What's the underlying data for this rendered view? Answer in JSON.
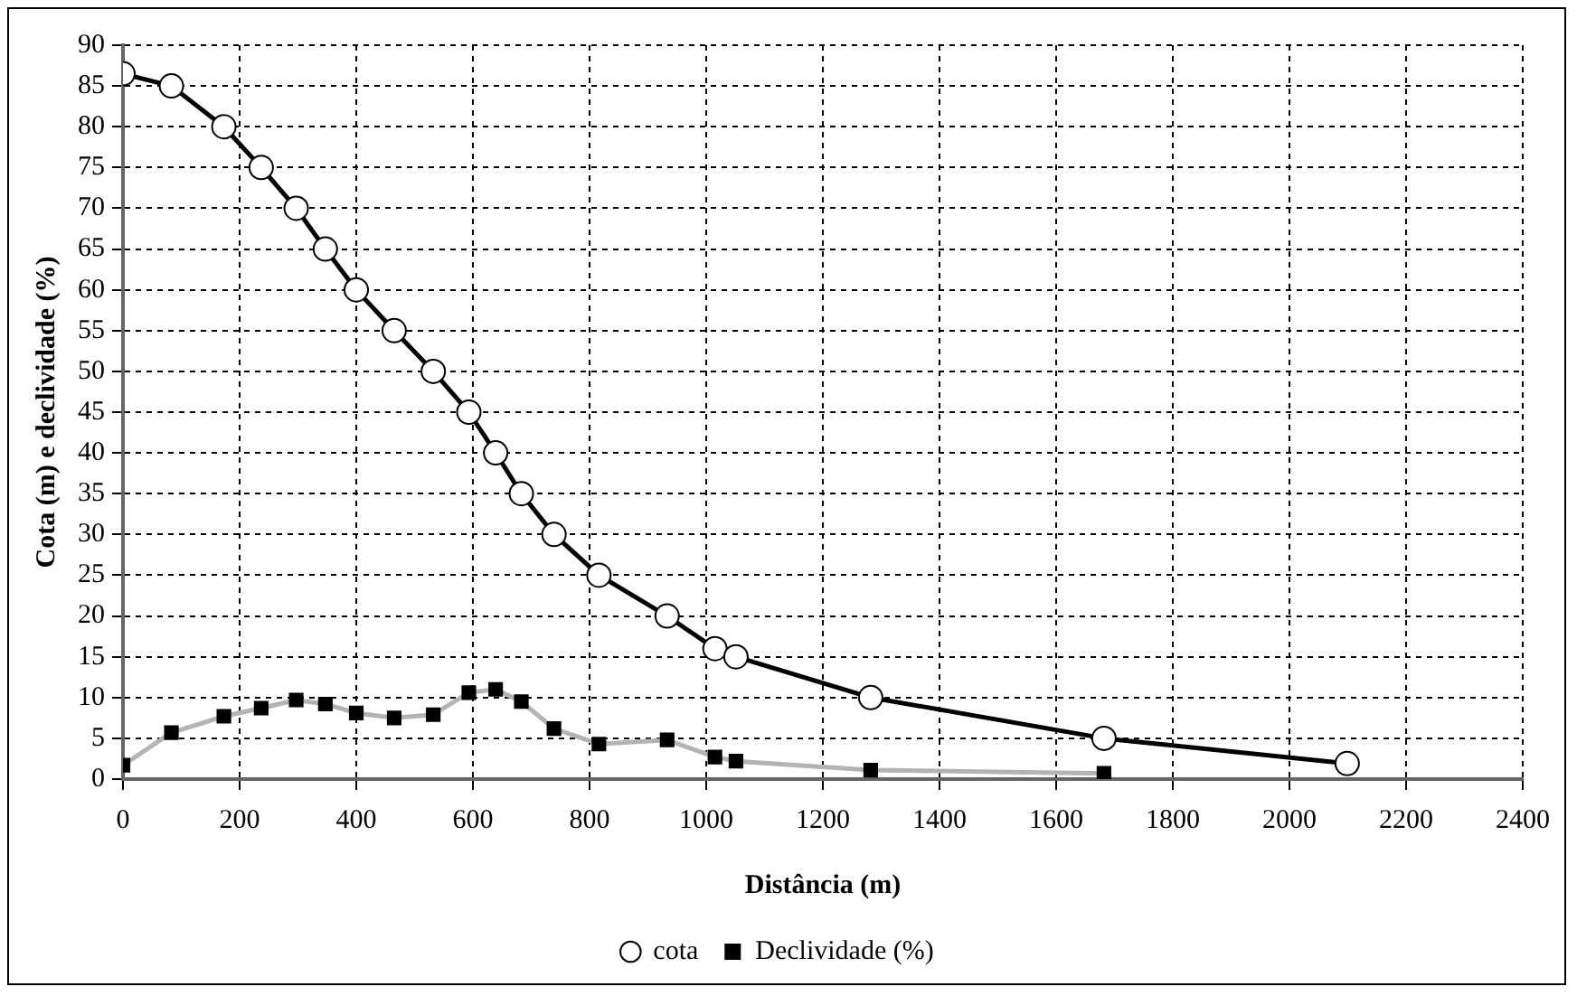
{
  "chart_data": {
    "type": "line",
    "xlabel": "Distância (m)",
    "ylabel": "Cota (m) e declividade (%)",
    "xlim": [
      0,
      2400
    ],
    "xticks": [
      0,
      200,
      400,
      600,
      800,
      1000,
      1200,
      1400,
      1600,
      1800,
      2000,
      2200,
      2400
    ],
    "ylim": [
      0,
      90
    ],
    "yticks": [
      0,
      5,
      10,
      15,
      20,
      25,
      30,
      35,
      40,
      45,
      50,
      55,
      60,
      65,
      70,
      75,
      80,
      85,
      90
    ],
    "grid": true,
    "legend": "bottom",
    "line_style": "solid",
    "series": [
      {
        "name": "cota",
        "color": "#000000",
        "marker": "circle",
        "x": [
          0,
          83,
          173,
          237,
          297,
          347,
          400,
          465,
          532,
          593,
          639,
          683,
          739,
          816,
          933,
          1015,
          1051,
          1282,
          1682,
          2099
        ],
        "values": [
          86.5,
          85,
          80,
          75,
          70,
          65,
          60,
          55,
          50,
          45,
          40,
          35,
          30,
          25,
          20,
          16,
          15,
          10,
          5,
          1.9
        ]
      },
      {
        "name": "Declividade (%)",
        "color": "#b3b3b3",
        "marker": "square",
        "x": [
          0,
          83,
          173,
          237,
          297,
          347,
          400,
          465,
          532,
          593,
          639,
          683,
          739,
          816,
          933,
          1015,
          1051,
          1282,
          1682
        ],
        "values": [
          1.7,
          5.7,
          7.7,
          8.7,
          9.7,
          9.2,
          8.1,
          7.5,
          7.9,
          10.6,
          11,
          9.5,
          6.2,
          4.3,
          4.8,
          2.7,
          2.2,
          1.1,
          0.7
        ]
      }
    ]
  }
}
